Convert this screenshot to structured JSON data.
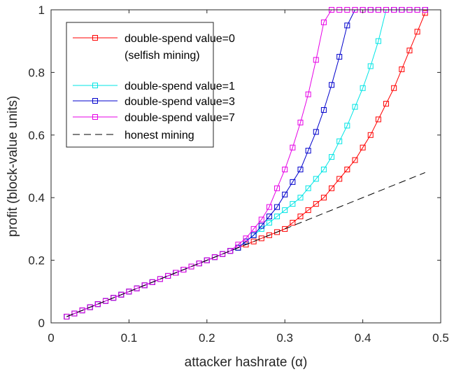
{
  "chart_data": {
    "type": "line",
    "xlabel": "attacker hashrate (α)",
    "ylabel": "profit (block-value units)",
    "xlim": [
      0,
      0.5
    ],
    "ylim": [
      0,
      1
    ],
    "xticks": [
      "0",
      "0.1",
      "0.2",
      "0.3",
      "0.4",
      "0.5"
    ],
    "yticks": [
      "0",
      "0.2",
      "0.4",
      "0.6",
      "0.8",
      "1"
    ],
    "grid": false,
    "legend_position": "top-left",
    "series": [
      {
        "name": "double-spend value=0",
        "name_line2": "(selfish mining)",
        "color": "#ff0000",
        "marker": "square",
        "x": [
          0.02,
          0.03,
          0.04,
          0.05,
          0.06,
          0.07,
          0.08,
          0.09,
          0.1,
          0.11,
          0.12,
          0.13,
          0.14,
          0.15,
          0.16,
          0.17,
          0.18,
          0.19,
          0.2,
          0.21,
          0.22,
          0.23,
          0.24,
          0.25,
          0.26,
          0.27,
          0.28,
          0.29,
          0.3,
          0.31,
          0.32,
          0.33,
          0.34,
          0.35,
          0.36,
          0.37,
          0.38,
          0.39,
          0.4,
          0.41,
          0.42,
          0.43,
          0.44,
          0.45,
          0.46,
          0.47,
          0.48
        ],
        "y": [
          0.02,
          0.03,
          0.04,
          0.05,
          0.06,
          0.07,
          0.08,
          0.09,
          0.1,
          0.11,
          0.12,
          0.13,
          0.14,
          0.15,
          0.16,
          0.17,
          0.18,
          0.19,
          0.2,
          0.21,
          0.22,
          0.23,
          0.24,
          0.25,
          0.26,
          0.27,
          0.28,
          0.29,
          0.3,
          0.32,
          0.34,
          0.36,
          0.38,
          0.4,
          0.43,
          0.46,
          0.49,
          0.52,
          0.56,
          0.6,
          0.65,
          0.7,
          0.75,
          0.81,
          0.87,
          0.93,
          0.99
        ]
      },
      {
        "name": "double-spend value=1",
        "color": "#00e5e5",
        "marker": "square",
        "x": [
          0.02,
          0.03,
          0.04,
          0.05,
          0.06,
          0.07,
          0.08,
          0.09,
          0.1,
          0.11,
          0.12,
          0.13,
          0.14,
          0.15,
          0.16,
          0.17,
          0.18,
          0.19,
          0.2,
          0.21,
          0.22,
          0.23,
          0.24,
          0.25,
          0.26,
          0.27,
          0.28,
          0.29,
          0.3,
          0.31,
          0.32,
          0.33,
          0.34,
          0.35,
          0.36,
          0.37,
          0.38,
          0.39,
          0.4,
          0.41,
          0.42,
          0.43,
          0.44,
          0.45,
          0.46,
          0.47,
          0.48
        ],
        "y": [
          0.02,
          0.03,
          0.04,
          0.05,
          0.06,
          0.07,
          0.08,
          0.09,
          0.1,
          0.11,
          0.12,
          0.13,
          0.14,
          0.15,
          0.16,
          0.17,
          0.18,
          0.19,
          0.2,
          0.21,
          0.22,
          0.23,
          0.24,
          0.26,
          0.28,
          0.3,
          0.32,
          0.34,
          0.36,
          0.38,
          0.4,
          0.43,
          0.46,
          0.49,
          0.53,
          0.58,
          0.63,
          0.69,
          0.75,
          0.82,
          0.9,
          1.0,
          1.0,
          1.0,
          1.0,
          1.0,
          1.0
        ]
      },
      {
        "name": "double-spend value=3",
        "color": "#0000cc",
        "marker": "square",
        "x": [
          0.02,
          0.03,
          0.04,
          0.05,
          0.06,
          0.07,
          0.08,
          0.09,
          0.1,
          0.11,
          0.12,
          0.13,
          0.14,
          0.15,
          0.16,
          0.17,
          0.18,
          0.19,
          0.2,
          0.21,
          0.22,
          0.23,
          0.24,
          0.25,
          0.26,
          0.27,
          0.28,
          0.29,
          0.3,
          0.31,
          0.32,
          0.33,
          0.34,
          0.35,
          0.36,
          0.37,
          0.38,
          0.39,
          0.4,
          0.41,
          0.42,
          0.43,
          0.44,
          0.45,
          0.46,
          0.47,
          0.48
        ],
        "y": [
          0.02,
          0.03,
          0.04,
          0.05,
          0.06,
          0.07,
          0.08,
          0.09,
          0.1,
          0.11,
          0.12,
          0.13,
          0.14,
          0.15,
          0.16,
          0.17,
          0.18,
          0.19,
          0.2,
          0.21,
          0.22,
          0.23,
          0.24,
          0.26,
          0.28,
          0.31,
          0.34,
          0.37,
          0.41,
          0.45,
          0.49,
          0.55,
          0.61,
          0.68,
          0.76,
          0.85,
          0.95,
          1.0,
          1.0,
          1.0,
          1.0,
          1.0,
          1.0,
          1.0,
          1.0,
          1.0,
          1.0
        ]
      },
      {
        "name": "double-spend value=7",
        "color": "#e600e6",
        "marker": "square",
        "x": [
          0.02,
          0.03,
          0.04,
          0.05,
          0.06,
          0.07,
          0.08,
          0.09,
          0.1,
          0.11,
          0.12,
          0.13,
          0.14,
          0.15,
          0.16,
          0.17,
          0.18,
          0.19,
          0.2,
          0.21,
          0.22,
          0.23,
          0.24,
          0.25,
          0.26,
          0.27,
          0.28,
          0.29,
          0.3,
          0.31,
          0.32,
          0.33,
          0.34,
          0.35,
          0.36,
          0.37,
          0.38,
          0.39,
          0.4,
          0.41,
          0.42,
          0.43,
          0.44,
          0.45,
          0.46,
          0.47,
          0.48
        ],
        "y": [
          0.02,
          0.03,
          0.04,
          0.05,
          0.06,
          0.07,
          0.08,
          0.09,
          0.1,
          0.11,
          0.12,
          0.13,
          0.14,
          0.15,
          0.16,
          0.17,
          0.18,
          0.19,
          0.2,
          0.21,
          0.22,
          0.23,
          0.25,
          0.27,
          0.3,
          0.33,
          0.37,
          0.43,
          0.49,
          0.56,
          0.64,
          0.73,
          0.84,
          0.96,
          1.0,
          1.0,
          1.0,
          1.0,
          1.0,
          1.0,
          1.0,
          1.0,
          1.0,
          1.0,
          1.0,
          1.0,
          1.0
        ]
      },
      {
        "name": "honest mining",
        "color": "#000000",
        "dashed": true,
        "x": [
          0.02,
          0.48
        ],
        "y": [
          0.02,
          0.48
        ]
      }
    ]
  }
}
